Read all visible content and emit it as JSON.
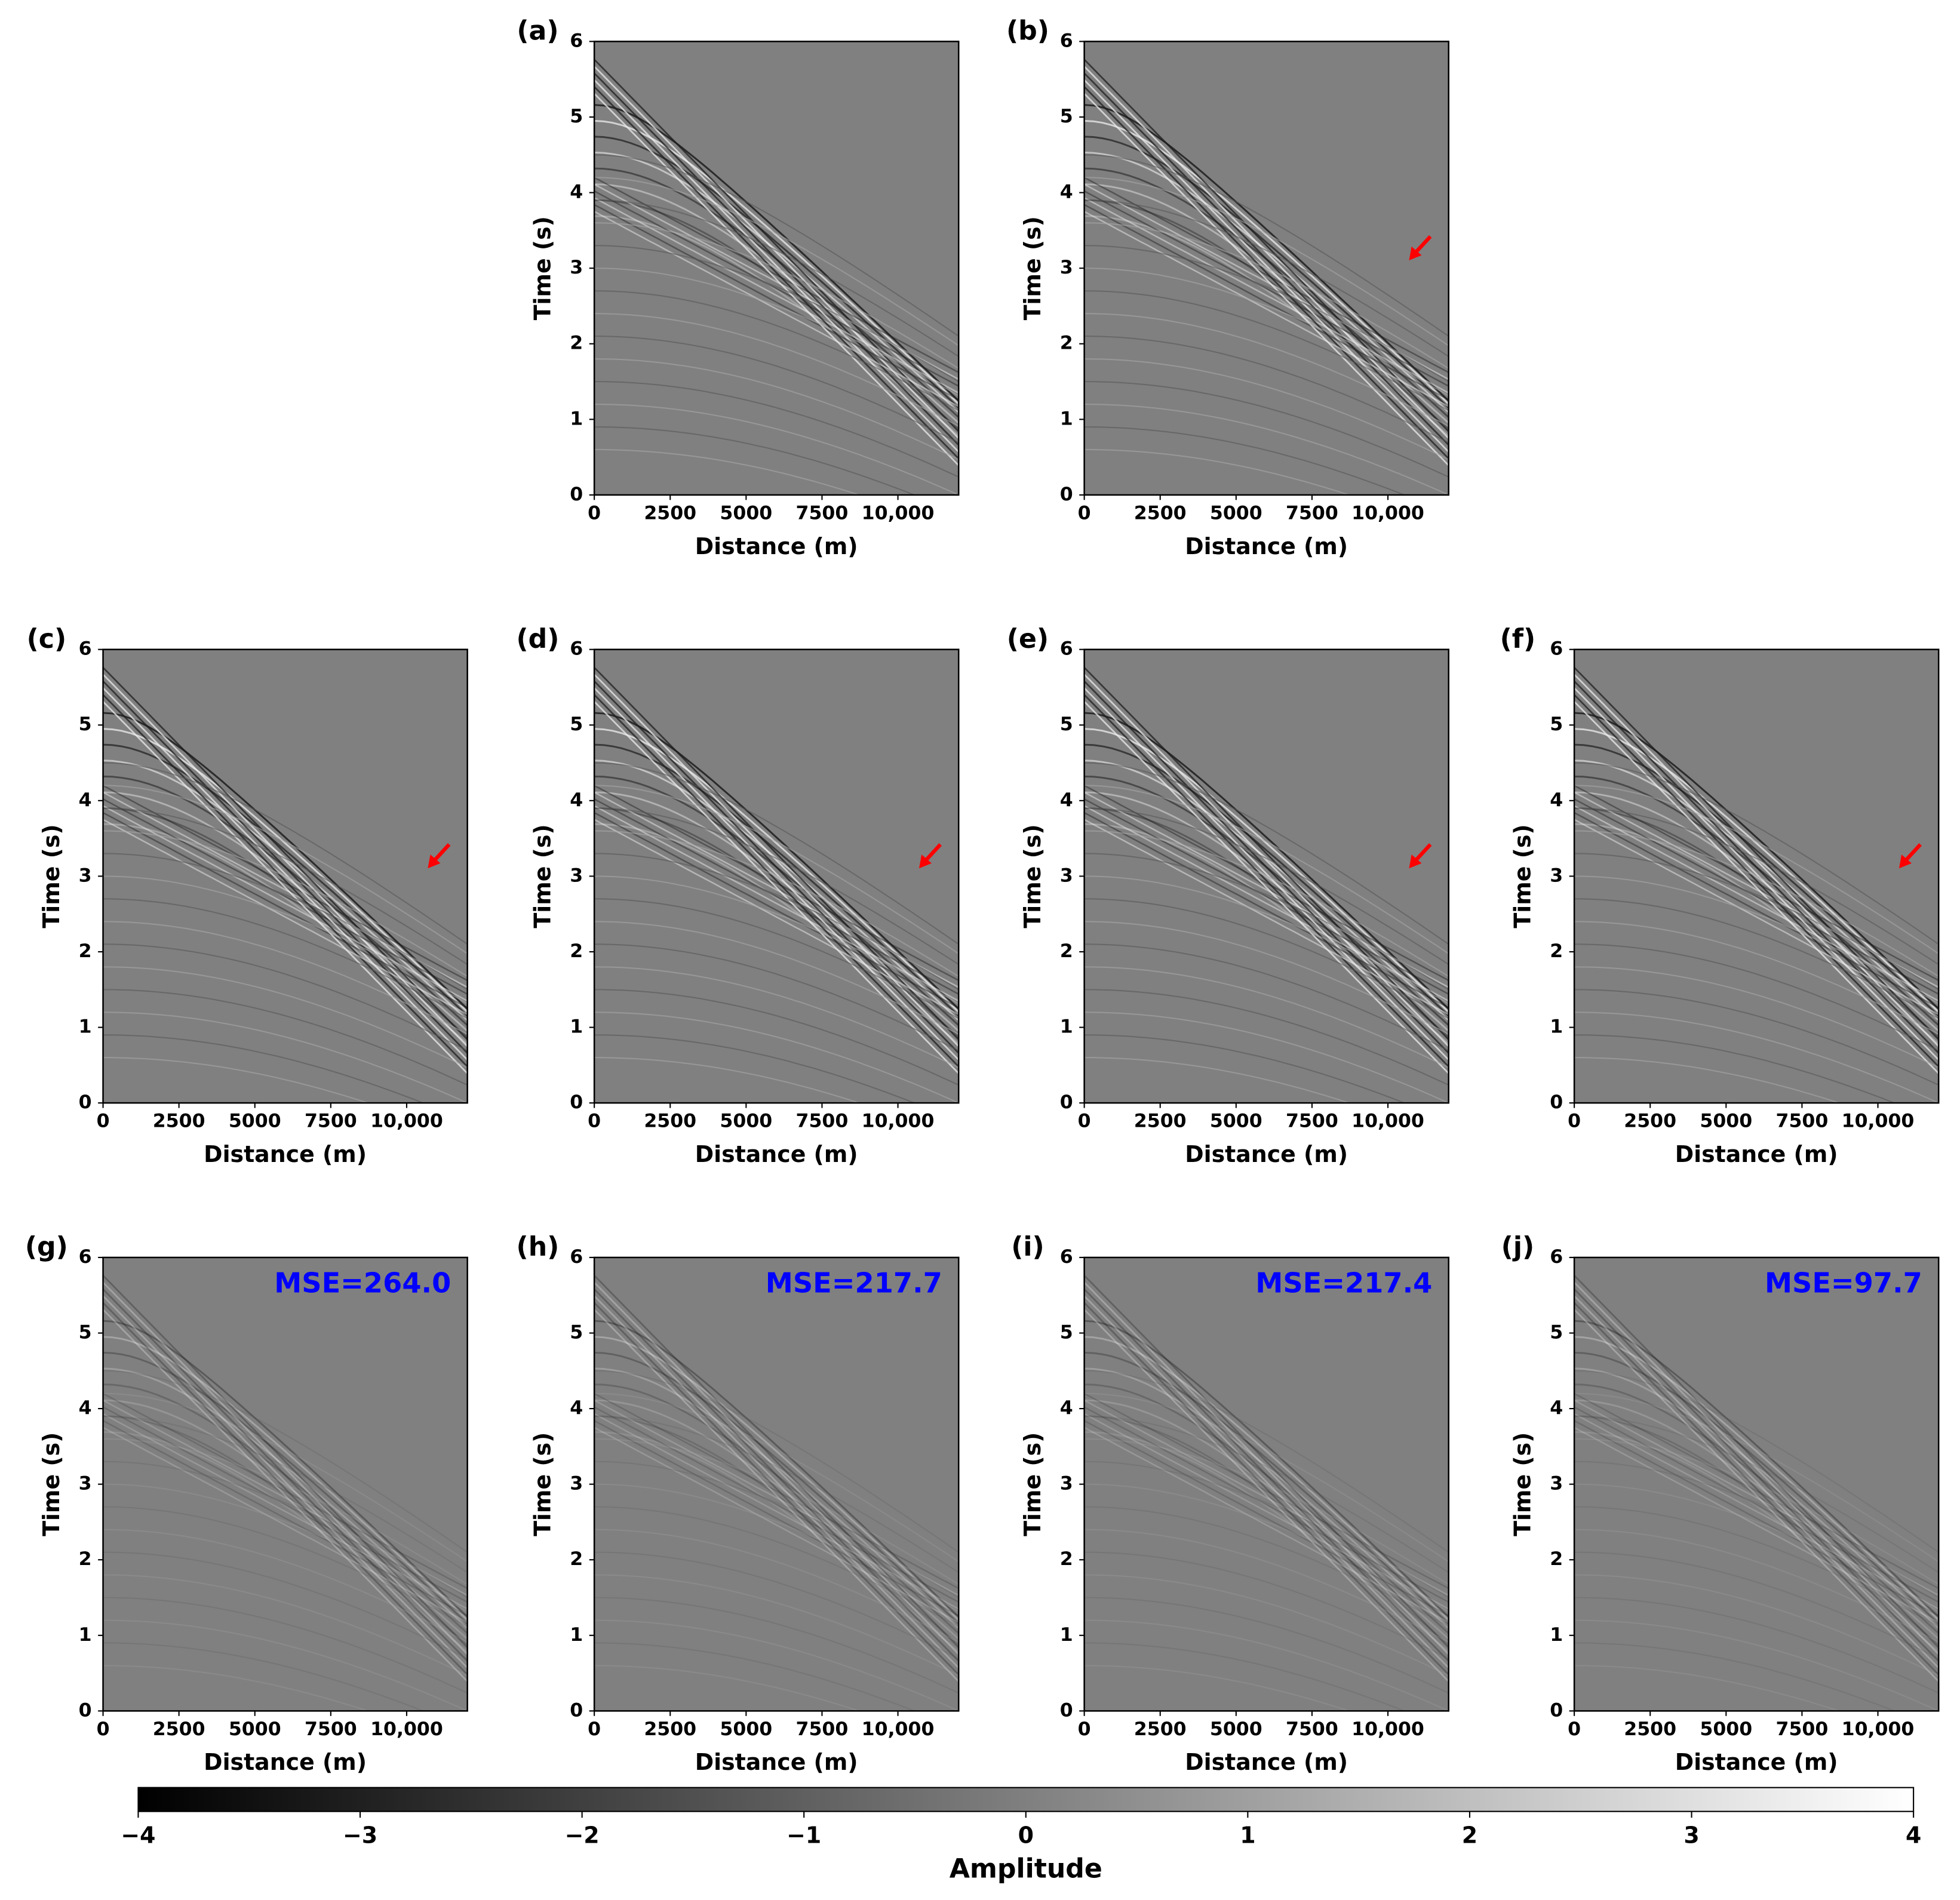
{
  "chart_data": [
    {
      "type": "heatmap",
      "title": "(a)",
      "xlabel": "Distance (m)",
      "ylabel": "Time (s)",
      "xlim": [
        0,
        12000
      ],
      "ylim": [
        6,
        0
      ],
      "xticks": [
        0,
        2500,
        5000,
        7500,
        {
          "value": 10000,
          "label": "10,000"
        }
      ],
      "yticks": [
        0,
        1,
        2,
        3,
        4,
        5,
        6
      ],
      "arrow": false
    },
    {
      "type": "heatmap",
      "title": "(b)",
      "xlabel": "Distance (m)",
      "ylabel": "Time (s)",
      "xlim": [
        0,
        12000
      ],
      "ylim": [
        6,
        0
      ],
      "xticks": [
        0,
        2500,
        5000,
        7500,
        {
          "value": 10000,
          "label": "10,000"
        }
      ],
      "yticks": [
        0,
        1,
        2,
        3,
        4,
        5,
        6
      ],
      "arrow": true
    },
    {
      "type": "heatmap",
      "title": "(c)",
      "xlabel": "Distance (m)",
      "ylabel": "Time (s)",
      "xlim": [
        0,
        12000
      ],
      "ylim": [
        6,
        0
      ],
      "xticks": [
        0,
        2500,
        5000,
        7500,
        {
          "value": 10000,
          "label": "10,000"
        }
      ],
      "yticks": [
        0,
        1,
        2,
        3,
        4,
        5,
        6
      ],
      "arrow": true
    },
    {
      "type": "heatmap",
      "title": "(d)",
      "xlabel": "Distance (m)",
      "ylabel": "Time (s)",
      "xlim": [
        0,
        12000
      ],
      "ylim": [
        6,
        0
      ],
      "xticks": [
        0,
        2500,
        5000,
        7500,
        {
          "value": 10000,
          "label": "10,000"
        }
      ],
      "yticks": [
        0,
        1,
        2,
        3,
        4,
        5,
        6
      ],
      "arrow": true
    },
    {
      "type": "heatmap",
      "title": "(e)",
      "xlabel": "Distance (m)",
      "ylabel": "Time (s)",
      "xlim": [
        0,
        12000
      ],
      "ylim": [
        6,
        0
      ],
      "xticks": [
        0,
        2500,
        5000,
        7500,
        {
          "value": 10000,
          "label": "10,000"
        }
      ],
      "yticks": [
        0,
        1,
        2,
        3,
        4,
        5,
        6
      ],
      "arrow": true
    },
    {
      "type": "heatmap",
      "title": "(f)",
      "xlabel": "Distance (m)",
      "ylabel": "Time (s)",
      "xlim": [
        0,
        12000
      ],
      "ylim": [
        6,
        0
      ],
      "xticks": [
        0,
        2500,
        5000,
        7500,
        {
          "value": 10000,
          "label": "10,000"
        }
      ],
      "yticks": [
        0,
        1,
        2,
        3,
        4,
        5,
        6
      ],
      "arrow": true
    },
    {
      "type": "heatmap",
      "title": "(g)",
      "xlabel": "Distance (m)",
      "ylabel": "Time (s)",
      "xlim": [
        0,
        12000
      ],
      "ylim": [
        6,
        0
      ],
      "xticks": [
        0,
        2500,
        5000,
        7500,
        {
          "value": 10000,
          "label": "10,000"
        }
      ],
      "yticks": [
        0,
        1,
        2,
        3,
        4,
        5,
        6
      ],
      "annotation": "MSE=264.0",
      "annotation_color": "#0000ff"
    },
    {
      "type": "heatmap",
      "title": "(h)",
      "xlabel": "Distance (m)",
      "ylabel": "Time (s)",
      "xlim": [
        0,
        12000
      ],
      "ylim": [
        6,
        0
      ],
      "xticks": [
        0,
        2500,
        5000,
        7500,
        {
          "value": 10000,
          "label": "10,000"
        }
      ],
      "yticks": [
        0,
        1,
        2,
        3,
        4,
        5,
        6
      ],
      "annotation": "MSE=217.7",
      "annotation_color": "#0000ff"
    },
    {
      "type": "heatmap",
      "title": "(i)",
      "xlabel": "Distance (m)",
      "ylabel": "Time (s)",
      "xlim": [
        0,
        12000
      ],
      "ylim": [
        6,
        0
      ],
      "xticks": [
        0,
        2500,
        5000,
        7500,
        {
          "value": 10000,
          "label": "10,000"
        }
      ],
      "yticks": [
        0,
        1,
        2,
        3,
        4,
        5,
        6
      ],
      "annotation": "MSE=217.4",
      "annotation_color": "#0000ff"
    },
    {
      "type": "heatmap",
      "title": "(j)",
      "xlabel": "Distance (m)",
      "ylabel": "Time (s)",
      "xlim": [
        0,
        12000
      ],
      "ylim": [
        6,
        0
      ],
      "xticks": [
        0,
        2500,
        5000,
        7500,
        {
          "value": 10000,
          "label": "10,000"
        }
      ],
      "yticks": [
        0,
        1,
        2,
        3,
        4,
        5,
        6
      ],
      "annotation": "MSE=97.7",
      "annotation_color": "#0000ff"
    },
    {
      "type": "colorbar",
      "xlabel": "Amplitude",
      "xlim": [
        -4,
        4
      ],
      "xticks": [
        {
          "value": -4,
          "label": "−4"
        },
        {
          "value": -3,
          "label": "−3"
        },
        {
          "value": -2,
          "label": "−2"
        },
        {
          "value": -1,
          "label": "−1"
        },
        0,
        1,
        2,
        3,
        4
      ]
    }
  ]
}
